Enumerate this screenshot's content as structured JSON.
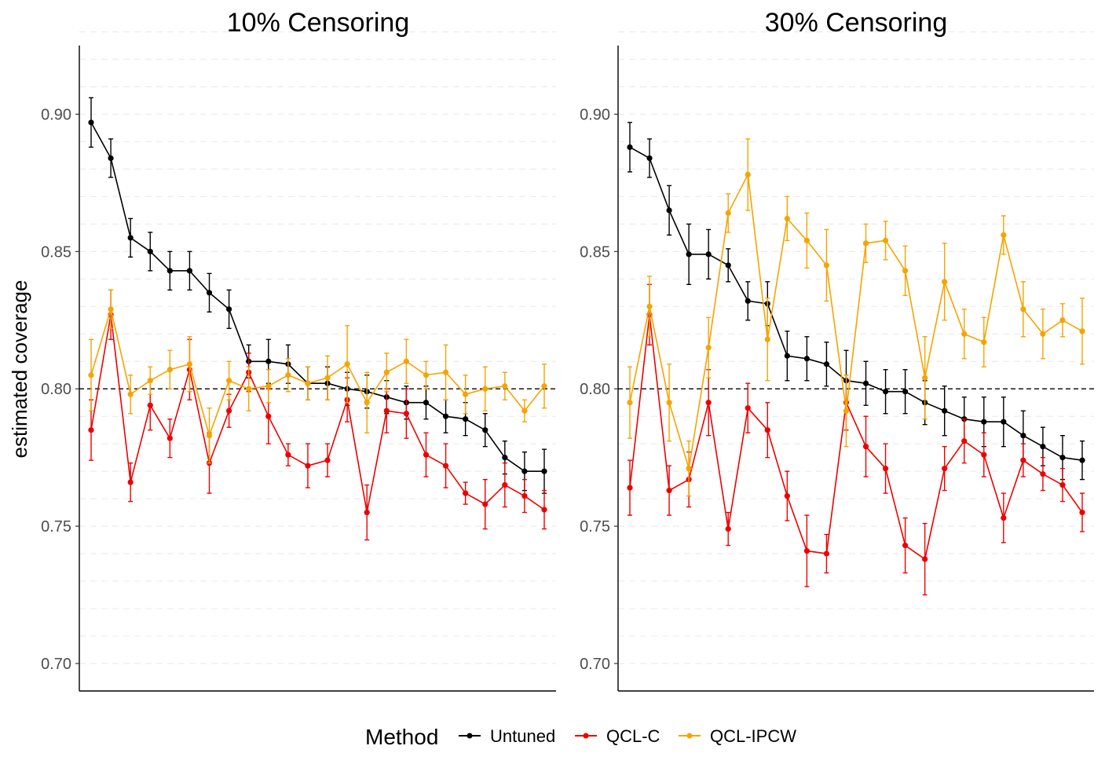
{
  "chart_data": {
    "type": "line",
    "ylabel": "estimated coverage",
    "ylim": [
      0.69,
      0.925
    ],
    "yticks": [
      0.7,
      0.75,
      0.8,
      0.85,
      0.9
    ],
    "ytick_labels": [
      "0.70",
      "0.75",
      "0.80",
      "0.85",
      "0.90"
    ],
    "reference_line": 0.8,
    "grid": "horizontal dashed minor",
    "legend": {
      "title": "Method",
      "position": "bottom",
      "entries": [
        {
          "name": "Untuned",
          "color": "#000000"
        },
        {
          "name": "QCL-C",
          "color": "#ee0000"
        },
        {
          "name": "QCL-IPCW",
          "color": "#f5a400"
        }
      ]
    },
    "panels": [
      {
        "title": "10% Censoring",
        "series": [
          {
            "name": "Untuned",
            "color": "#000000",
            "values": [
              0.897,
              0.884,
              0.855,
              0.85,
              0.843,
              0.843,
              0.835,
              0.829,
              0.81,
              0.81,
              0.809,
              0.802,
              0.802,
              0.8,
              0.799,
              0.797,
              0.795,
              0.795,
              0.79,
              0.789,
              0.785,
              0.775,
              0.77,
              0.77
            ],
            "errors": [
              0.009,
              0.007,
              0.007,
              0.007,
              0.007,
              0.007,
              0.007,
              0.007,
              0.006,
              0.008,
              0.007,
              0.006,
              0.006,
              0.006,
              0.006,
              0.006,
              0.006,
              0.006,
              0.006,
              0.006,
              0.006,
              0.006,
              0.007,
              0.008
            ]
          },
          {
            "name": "QCL-C",
            "color": "#ee0000",
            "values": [
              0.785,
              0.827,
              0.766,
              0.794,
              0.782,
              0.807,
              0.773,
              0.792,
              0.806,
              0.79,
              0.776,
              0.772,
              0.774,
              0.796,
              0.755,
              0.792,
              0.791,
              0.776,
              0.772,
              0.762,
              0.758,
              0.765,
              0.761,
              0.756
            ],
            "errors": [
              0.011,
              0.009,
              0.007,
              0.009,
              0.007,
              0.011,
              0.011,
              0.006,
              0.007,
              0.01,
              0.004,
              0.008,
              0.006,
              0.008,
              0.01,
              0.008,
              0.009,
              0.008,
              0.008,
              0.004,
              0.009,
              0.008,
              0.006,
              0.007
            ]
          },
          {
            "name": "QCL-IPCW",
            "color": "#f5a400",
            "values": [
              0.805,
              0.829,
              0.798,
              0.803,
              0.807,
              0.809,
              0.783,
              0.803,
              0.8,
              0.801,
              0.805,
              0.802,
              0.804,
              0.809,
              0.795,
              0.806,
              0.81,
              0.805,
              0.806,
              0.798,
              0.8,
              0.801,
              0.792,
              0.801
            ]
          },
          {
            "name": "QCL-IPCW_err",
            "hidden": true,
            "values": [
              0.013,
              0.007,
              0.007,
              0.005,
              0.007,
              0.01,
              0.01,
              0.007,
              0.008,
              0.006,
              0.006,
              0.006,
              0.008,
              0.014,
              0.011,
              0.007,
              0.008,
              0.005,
              0.01,
              0.007,
              0.008,
              0.005,
              0.004,
              0.008
            ]
          }
        ]
      },
      {
        "title": "30% Censoring",
        "series": [
          {
            "name": "Untuned",
            "color": "#000000",
            "values": [
              0.888,
              0.884,
              0.865,
              0.849,
              0.849,
              0.845,
              0.832,
              0.831,
              0.812,
              0.811,
              0.809,
              0.803,
              0.802,
              0.799,
              0.799,
              0.795,
              0.792,
              0.789,
              0.788,
              0.788,
              0.783,
              0.779,
              0.775,
              0.774
            ],
            "errors": [
              0.009,
              0.007,
              0.009,
              0.011,
              0.009,
              0.006,
              0.007,
              0.008,
              0.009,
              0.008,
              0.008,
              0.011,
              0.008,
              0.008,
              0.008,
              0.008,
              0.009,
              0.008,
              0.009,
              0.009,
              0.009,
              0.007,
              0.008,
              0.007
            ]
          },
          {
            "name": "QCL-C",
            "color": "#ee0000",
            "values": [
              0.764,
              0.827,
              0.763,
              0.767,
              0.795,
              0.749,
              0.793,
              0.785,
              0.761,
              0.741,
              0.74,
              0.795,
              0.779,
              0.771,
              0.743,
              0.738,
              0.771,
              0.781,
              0.776,
              0.753,
              0.774,
              0.769,
              0.765,
              0.755
            ],
            "errors": [
              0.01,
              0.011,
              0.009,
              0.01,
              0.012,
              0.006,
              0.009,
              0.01,
              0.009,
              0.013,
              0.007,
              0.01,
              0.011,
              0.009,
              0.01,
              0.013,
              0.008,
              0.008,
              0.008,
              0.009,
              0.006,
              0.006,
              0.006,
              0.007
            ]
          },
          {
            "name": "QCL-IPCW",
            "color": "#f5a400",
            "values": [
              0.795,
              0.83,
              0.795,
              0.771,
              0.815,
              0.864,
              0.878,
              0.818,
              0.862,
              0.854,
              0.845,
              0.792,
              0.853,
              0.854,
              0.843,
              0.804,
              0.839,
              0.82,
              0.817,
              0.856,
              0.829,
              0.82,
              0.825,
              0.821
            ],
            "errors": [
              0.013,
              0.011,
              0.014,
              0.01,
              0.011,
              0.007,
              0.013,
              0.015,
              0.008,
              0.01,
              0.013,
              0.013,
              0.007,
              0.007,
              0.009,
              0.015,
              0.014,
              0.009,
              0.009,
              0.007,
              0.01,
              0.009,
              0.006,
              0.012
            ]
          }
        ]
      }
    ]
  }
}
